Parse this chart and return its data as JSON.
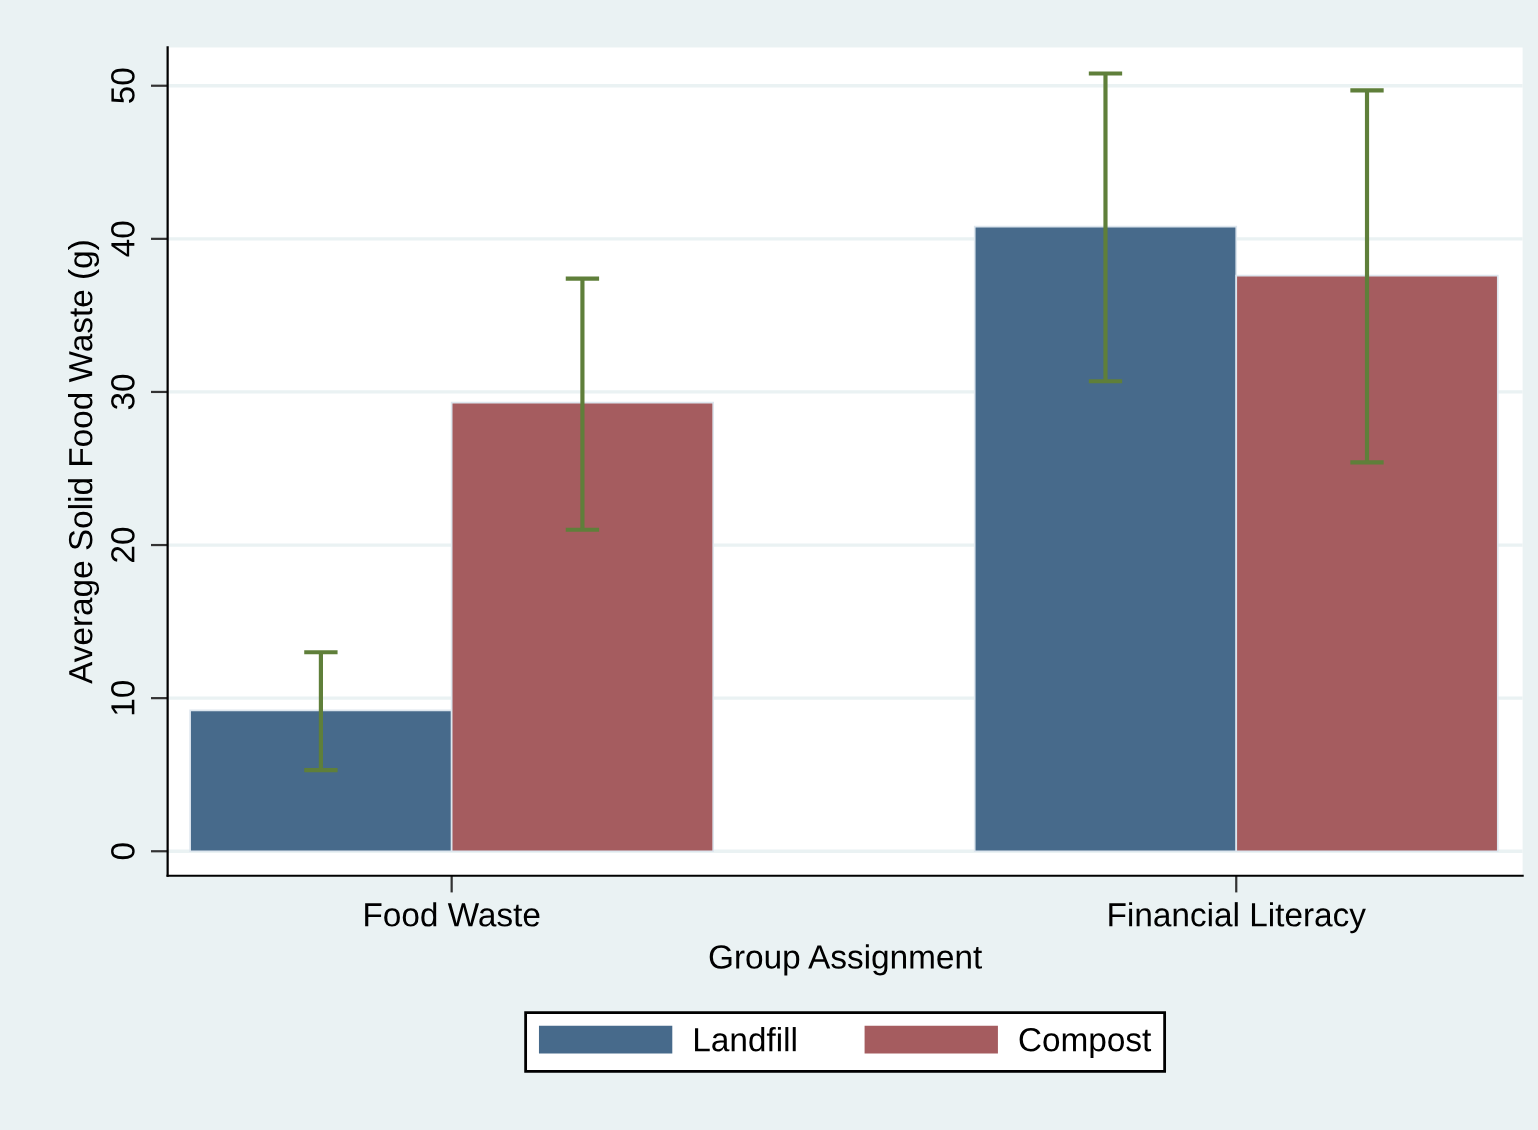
{
  "chart_data": {
    "type": "bar",
    "xlabel": "Group Assignment",
    "ylabel": "Average Solid Food Waste (g)",
    "categories": [
      "Food Waste",
      "Financial Literacy"
    ],
    "series": [
      {
        "name": "Landfill",
        "color": "#476a8b",
        "values": [
          9.2,
          40.8
        ],
        "errors": [
          [
            5.3,
            13.0
          ],
          [
            30.7,
            50.8
          ]
        ]
      },
      {
        "name": "Compost",
        "color": "#a55c5f",
        "values": [
          29.3,
          37.6
        ],
        "errors": [
          [
            21.0,
            37.4
          ],
          [
            25.4,
            49.7
          ]
        ]
      }
    ],
    "ylim": [
      -1.6,
      52.5
    ],
    "yticks": [
      0,
      10,
      20,
      30,
      40,
      50
    ],
    "grid": "y",
    "legend": "bottom"
  }
}
